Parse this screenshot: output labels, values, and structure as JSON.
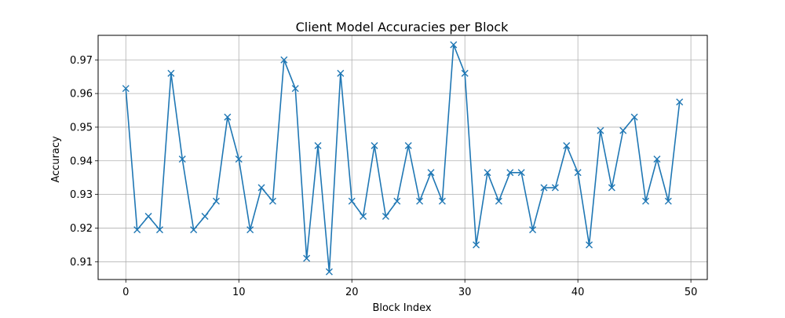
{
  "chart_data": {
    "type": "line",
    "title": "Client Model Accuracies per Block",
    "xlabel": "Block Index",
    "ylabel": "Accuracy",
    "xlim": [
      -2.45,
      51.45
    ],
    "ylim": [
      0.9047,
      0.9773
    ],
    "x_ticks": [
      0,
      10,
      20,
      30,
      40,
      50
    ],
    "y_ticks": [
      0.91,
      0.92,
      0.93,
      0.94,
      0.95,
      0.96,
      0.97
    ],
    "grid": true,
    "marker": "x",
    "series": [
      {
        "color": "#1f77b4",
        "x": [
          0,
          1,
          2,
          3,
          4,
          5,
          6,
          7,
          8,
          9,
          10,
          11,
          12,
          13,
          14,
          15,
          16,
          17,
          18,
          19,
          20,
          21,
          22,
          23,
          24,
          25,
          26,
          27,
          28,
          29,
          30,
          31,
          32,
          33,
          34,
          35,
          36,
          37,
          38,
          39,
          40,
          41,
          42,
          43,
          44,
          45,
          46,
          47,
          48,
          49
        ],
        "values": [
          0.9615,
          0.9195,
          0.9235,
          0.9195,
          0.966,
          0.9405,
          0.9195,
          0.9235,
          0.928,
          0.953,
          0.9405,
          0.9195,
          0.932,
          0.928,
          0.97,
          0.9615,
          0.911,
          0.9445,
          0.907,
          0.966,
          0.928,
          0.9235,
          0.9445,
          0.9235,
          0.928,
          0.9445,
          0.928,
          0.9365,
          0.928,
          0.9745,
          0.966,
          0.915,
          0.9365,
          0.928,
          0.9365,
          0.9365,
          0.9195,
          0.932,
          0.932,
          0.9445,
          0.9365,
          0.915,
          0.949,
          0.932,
          0.949,
          0.953,
          0.928,
          0.9405,
          0.928,
          0.9575
        ]
      }
    ]
  }
}
